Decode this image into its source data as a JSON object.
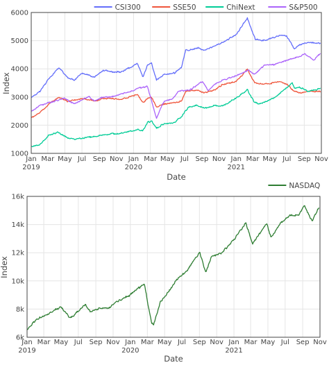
{
  "chart_data": [
    {
      "type": "line",
      "xlabel": "Date",
      "ylabel": "Index",
      "ylim": [
        1000,
        6000
      ],
      "xlim": [
        "2019-01-01",
        "2021-11-01"
      ],
      "grid": true,
      "legend_position": "top-right",
      "x_ticks": [
        {
          "date": "2019-01-01",
          "label": "Jan",
          "year": "2019"
        },
        {
          "date": "2019-03-01",
          "label": "Mar",
          "year": ""
        },
        {
          "date": "2019-05-01",
          "label": "May",
          "year": ""
        },
        {
          "date": "2019-07-01",
          "label": "Jul",
          "year": ""
        },
        {
          "date": "2019-09-01",
          "label": "Sep",
          "year": ""
        },
        {
          "date": "2019-11-01",
          "label": "Nov",
          "year": ""
        },
        {
          "date": "2020-01-01",
          "label": "Jan",
          "year": "2020"
        },
        {
          "date": "2020-03-01",
          "label": "Mar",
          "year": ""
        },
        {
          "date": "2020-05-01",
          "label": "May",
          "year": ""
        },
        {
          "date": "2020-07-01",
          "label": "Jul",
          "year": ""
        },
        {
          "date": "2020-09-01",
          "label": "Sep",
          "year": ""
        },
        {
          "date": "2020-11-01",
          "label": "Nov",
          "year": ""
        },
        {
          "date": "2021-01-01",
          "label": "Jan",
          "year": "2021"
        },
        {
          "date": "2021-03-01",
          "label": "Mar",
          "year": ""
        },
        {
          "date": "2021-05-01",
          "label": "May",
          "year": ""
        },
        {
          "date": "2021-07-01",
          "label": "Jul",
          "year": ""
        },
        {
          "date": "2021-09-01",
          "label": "Sep",
          "year": ""
        },
        {
          "date": "2021-11-01",
          "label": "Nov",
          "year": ""
        }
      ],
      "y_ticks": [
        {
          "value": 1000,
          "label": "1000"
        },
        {
          "value": 2000,
          "label": "2000"
        },
        {
          "value": 3000,
          "label": "3000"
        },
        {
          "value": 4000,
          "label": "4000"
        },
        {
          "value": 5000,
          "label": "5000"
        },
        {
          "value": 6000,
          "label": "6000"
        }
      ],
      "series": [
        {
          "name": "CSI300",
          "color": "#636efa",
          "points": [
            [
              "2019-01-02",
              2970
            ],
            [
              "2019-02-01",
              3200
            ],
            [
              "2019-03-05",
              3650
            ],
            [
              "2019-04-10",
              4050
            ],
            [
              "2019-05-10",
              3700
            ],
            [
              "2019-06-05",
              3600
            ],
            [
              "2019-07-01",
              3850
            ],
            [
              "2019-08-15",
              3700
            ],
            [
              "2019-09-15",
              3950
            ],
            [
              "2019-10-15",
              3900
            ],
            [
              "2019-11-15",
              3880
            ],
            [
              "2019-12-31",
              4100
            ],
            [
              "2020-01-15",
              4200
            ],
            [
              "2020-02-03",
              3700
            ],
            [
              "2020-02-20",
              4150
            ],
            [
              "2020-03-05",
              4200
            ],
            [
              "2020-03-23",
              3600
            ],
            [
              "2020-04-20",
              3800
            ],
            [
              "2020-05-25",
              3850
            ],
            [
              "2020-06-20",
              4050
            ],
            [
              "2020-07-06",
              4700
            ],
            [
              "2020-07-15",
              4650
            ],
            [
              "2020-08-15",
              4750
            ],
            [
              "2020-09-10",
              4650
            ],
            [
              "2020-10-15",
              4800
            ],
            [
              "2020-11-15",
              4950
            ],
            [
              "2020-12-31",
              5200
            ],
            [
              "2021-01-20",
              5500
            ],
            [
              "2021-02-10",
              5800
            ],
            [
              "2021-02-25",
              5400
            ],
            [
              "2021-03-10",
              5050
            ],
            [
              "2021-04-10",
              5000
            ],
            [
              "2021-05-10",
              5100
            ],
            [
              "2021-06-10",
              5200
            ],
            [
              "2021-07-01",
              5150
            ],
            [
              "2021-07-28",
              4700
            ],
            [
              "2021-08-15",
              4850
            ],
            [
              "2021-09-15",
              4950
            ],
            [
              "2021-10-28",
              4900
            ]
          ]
        },
        {
          "name": "SSE50",
          "color": "#ef553b",
          "points": [
            [
              "2019-01-02",
              2260
            ],
            [
              "2019-02-01",
              2450
            ],
            [
              "2019-03-05",
              2750
            ],
            [
              "2019-04-10",
              3000
            ],
            [
              "2019-05-10",
              2850
            ],
            [
              "2019-06-10",
              2900
            ],
            [
              "2019-07-10",
              2950
            ],
            [
              "2019-08-15",
              2850
            ],
            [
              "2019-09-15",
              2950
            ],
            [
              "2019-10-15",
              2950
            ],
            [
              "2019-11-15",
              2900
            ],
            [
              "2019-12-31",
              3050
            ],
            [
              "2020-01-15",
              3100
            ],
            [
              "2020-02-03",
              2800
            ],
            [
              "2020-02-20",
              2950
            ],
            [
              "2020-03-05",
              3000
            ],
            [
              "2020-03-23",
              2650
            ],
            [
              "2020-04-20",
              2750
            ],
            [
              "2020-05-25",
              2800
            ],
            [
              "2020-06-20",
              2850
            ],
            [
              "2020-07-06",
              3200
            ],
            [
              "2020-08-15",
              3250
            ],
            [
              "2020-09-10",
              3150
            ],
            [
              "2020-10-15",
              3250
            ],
            [
              "2020-11-15",
              3450
            ],
            [
              "2020-12-31",
              3550
            ],
            [
              "2021-01-20",
              3750
            ],
            [
              "2021-02-10",
              4000
            ],
            [
              "2021-02-25",
              3700
            ],
            [
              "2021-03-10",
              3500
            ],
            [
              "2021-04-10",
              3450
            ],
            [
              "2021-05-10",
              3500
            ],
            [
              "2021-06-10",
              3550
            ],
            [
              "2021-07-01",
              3450
            ],
            [
              "2021-07-28",
              3200
            ],
            [
              "2021-08-15",
              3150
            ],
            [
              "2021-09-15",
              3200
            ],
            [
              "2021-10-28",
              3200
            ]
          ]
        },
        {
          "name": "ChiNext",
          "color": "#00cc96",
          "points": [
            [
              "2019-01-02",
              1250
            ],
            [
              "2019-02-01",
              1300
            ],
            [
              "2019-03-05",
              1650
            ],
            [
              "2019-04-05",
              1750
            ],
            [
              "2019-05-10",
              1550
            ],
            [
              "2019-06-05",
              1500
            ],
            [
              "2019-07-10",
              1550
            ],
            [
              "2019-08-15",
              1600
            ],
            [
              "2019-09-15",
              1650
            ],
            [
              "2019-10-15",
              1700
            ],
            [
              "2019-11-15",
              1700
            ],
            [
              "2019-12-31",
              1800
            ],
            [
              "2020-01-15",
              1850
            ],
            [
              "2020-02-03",
              1800
            ],
            [
              "2020-02-20",
              2100
            ],
            [
              "2020-03-05",
              2150
            ],
            [
              "2020-03-23",
              1900
            ],
            [
              "2020-04-20",
              2050
            ],
            [
              "2020-05-25",
              2100
            ],
            [
              "2020-06-20",
              2300
            ],
            [
              "2020-07-15",
              2650
            ],
            [
              "2020-08-15",
              2700
            ],
            [
              "2020-09-10",
              2600
            ],
            [
              "2020-10-15",
              2700
            ],
            [
              "2020-11-15",
              2700
            ],
            [
              "2020-12-31",
              2950
            ],
            [
              "2021-01-20",
              3100
            ],
            [
              "2021-02-10",
              3250
            ],
            [
              "2021-03-05",
              2850
            ],
            [
              "2021-03-25",
              2750
            ],
            [
              "2021-04-20",
              2850
            ],
            [
              "2021-05-20",
              3000
            ],
            [
              "2021-06-20",
              3250
            ],
            [
              "2021-07-20",
              3500
            ],
            [
              "2021-07-28",
              3300
            ],
            [
              "2021-08-15",
              3350
            ],
            [
              "2021-09-15",
              3200
            ],
            [
              "2021-10-28",
              3300
            ]
          ]
        },
        {
          "name": "S&P500",
          "color": "#ab63fa",
          "points": [
            [
              "2019-01-02",
              2500
            ],
            [
              "2019-02-01",
              2700
            ],
            [
              "2019-03-05",
              2800
            ],
            [
              "2019-04-30",
              2950
            ],
            [
              "2019-06-03",
              2750
            ],
            [
              "2019-07-26",
              3020
            ],
            [
              "2019-08-15",
              2850
            ],
            [
              "2019-09-15",
              3000
            ],
            [
              "2019-10-15",
              3000
            ],
            [
              "2019-11-15",
              3100
            ],
            [
              "2019-12-31",
              3230
            ],
            [
              "2020-01-15",
              3300
            ],
            [
              "2020-02-19",
              3390
            ],
            [
              "2020-03-23",
              2240
            ],
            [
              "2020-04-15",
              2800
            ],
            [
              "2020-05-20",
              2950
            ],
            [
              "2020-06-08",
              3200
            ],
            [
              "2020-07-20",
              3250
            ],
            [
              "2020-09-02",
              3550
            ],
            [
              "2020-09-23",
              3250
            ],
            [
              "2020-10-15",
              3450
            ],
            [
              "2020-11-15",
              3600
            ],
            [
              "2020-12-31",
              3750
            ],
            [
              "2021-02-15",
              3950
            ],
            [
              "2021-03-05",
              3800
            ],
            [
              "2021-04-15",
              4150
            ],
            [
              "2021-05-15",
              4150
            ],
            [
              "2021-06-15",
              4250
            ],
            [
              "2021-07-15",
              4350
            ],
            [
              "2021-08-20",
              4450
            ],
            [
              "2021-09-02",
              4530
            ],
            [
              "2021-10-04",
              4300
            ],
            [
              "2021-10-28",
              4550
            ]
          ]
        }
      ]
    },
    {
      "type": "line",
      "xlabel": "Date",
      "ylabel": "Index",
      "ylim": [
        6000,
        16000
      ],
      "xlim": [
        "2019-01-01",
        "2021-11-01"
      ],
      "grid": true,
      "legend_position": "top-right",
      "x_ticks": [
        {
          "date": "2019-01-01",
          "label": "Jan",
          "year": "2019"
        },
        {
          "date": "2019-03-01",
          "label": "Mar",
          "year": ""
        },
        {
          "date": "2019-05-01",
          "label": "May",
          "year": ""
        },
        {
          "date": "2019-07-01",
          "label": "Jul",
          "year": ""
        },
        {
          "date": "2019-09-01",
          "label": "Sep",
          "year": ""
        },
        {
          "date": "2019-11-01",
          "label": "Nov",
          "year": ""
        },
        {
          "date": "2020-01-01",
          "label": "Jan",
          "year": "2020"
        },
        {
          "date": "2020-03-01",
          "label": "Mar",
          "year": ""
        },
        {
          "date": "2020-05-01",
          "label": "May",
          "year": ""
        },
        {
          "date": "2020-07-01",
          "label": "Jul",
          "year": ""
        },
        {
          "date": "2020-09-01",
          "label": "Sep",
          "year": ""
        },
        {
          "date": "2020-11-01",
          "label": "Nov",
          "year": ""
        },
        {
          "date": "2021-01-01",
          "label": "Jan",
          "year": "2021"
        },
        {
          "date": "2021-03-01",
          "label": "Mar",
          "year": ""
        },
        {
          "date": "2021-05-01",
          "label": "May",
          "year": ""
        },
        {
          "date": "2021-07-01",
          "label": "Jul",
          "year": ""
        },
        {
          "date": "2021-09-01",
          "label": "Sep",
          "year": ""
        },
        {
          "date": "2021-11-01",
          "label": "Nov",
          "year": ""
        }
      ],
      "y_ticks": [
        {
          "value": 6000,
          "label": "6k"
        },
        {
          "value": 8000,
          "label": "8k"
        },
        {
          "value": 10000,
          "label": "10k"
        },
        {
          "value": 12000,
          "label": "12k"
        },
        {
          "value": 14000,
          "label": "14k"
        },
        {
          "value": 16000,
          "label": "16k"
        }
      ],
      "series": [
        {
          "name": "NASDAQ",
          "color": "#2e7d32",
          "points": [
            [
              "2019-01-02",
              6500
            ],
            [
              "2019-02-01",
              7250
            ],
            [
              "2019-03-05",
              7550
            ],
            [
              "2019-04-30",
              8150
            ],
            [
              "2019-06-03",
              7350
            ],
            [
              "2019-07-26",
              8300
            ],
            [
              "2019-08-15",
              7800
            ],
            [
              "2019-09-15",
              8100
            ],
            [
              "2019-10-15",
              8050
            ],
            [
              "2019-11-15",
              8550
            ],
            [
              "2019-12-31",
              9000
            ],
            [
              "2020-01-15",
              9250
            ],
            [
              "2020-02-19",
              9800
            ],
            [
              "2020-03-16",
              7000
            ],
            [
              "2020-03-23",
              6860
            ],
            [
              "2020-04-15",
              8450
            ],
            [
              "2020-05-20",
              9350
            ],
            [
              "2020-06-10",
              10000
            ],
            [
              "2020-07-20",
              10750
            ],
            [
              "2020-09-02",
              12050
            ],
            [
              "2020-09-23",
              10650
            ],
            [
              "2020-10-15",
              11750
            ],
            [
              "2020-11-15",
              11900
            ],
            [
              "2020-12-31",
              12900
            ],
            [
              "2021-02-12",
              14100
            ],
            [
              "2021-03-08",
              12600
            ],
            [
              "2021-04-26",
              14100
            ],
            [
              "2021-05-12",
              13050
            ],
            [
              "2021-06-15",
              14100
            ],
            [
              "2021-07-15",
              14650
            ],
            [
              "2021-08-20",
              14700
            ],
            [
              "2021-09-07",
              15370
            ],
            [
              "2021-10-04",
              14250
            ],
            [
              "2021-10-28",
              15200
            ]
          ]
        }
      ]
    }
  ]
}
